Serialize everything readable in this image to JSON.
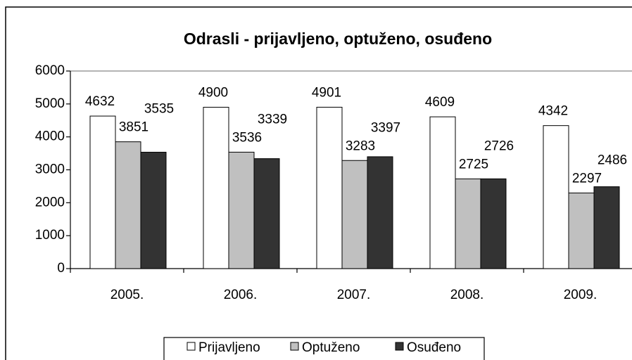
{
  "chart_data": {
    "type": "bar",
    "title": "Odrasli - prijavljeno, optuženo, osuđeno",
    "categories": [
      "2005.",
      "2006.",
      "2007.",
      "2008.",
      "2009."
    ],
    "series": [
      {
        "name": "Prijavljeno",
        "color": "#ffffff",
        "values": [
          4632,
          4900,
          4901,
          4609,
          4342
        ]
      },
      {
        "name": "Optuženo",
        "color": "#c0c0c0",
        "values": [
          3851,
          3536,
          3283,
          2725,
          2297
        ]
      },
      {
        "name": "Osuđeno",
        "color": "#333333",
        "values": [
          3535,
          3339,
          3397,
          2726,
          2486
        ]
      }
    ],
    "ylim": [
      0,
      6000
    ],
    "yticks": [
      0,
      1000,
      2000,
      3000,
      4000,
      5000,
      6000
    ],
    "legend": "bottom"
  }
}
